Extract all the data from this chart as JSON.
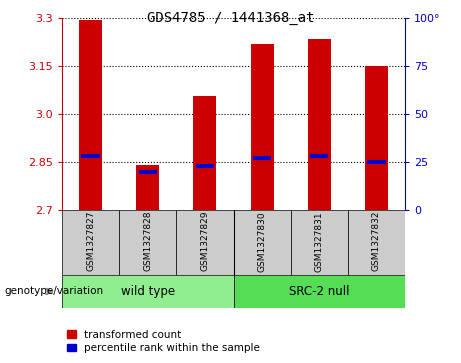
{
  "title": "GDS4785 / 1441368_at",
  "samples": [
    "GSM1327827",
    "GSM1327828",
    "GSM1327829",
    "GSM1327830",
    "GSM1327831",
    "GSM1327832"
  ],
  "transformed_counts": [
    3.295,
    2.84,
    3.055,
    3.22,
    3.235,
    3.15
  ],
  "percentile_ranks": [
    28,
    20,
    23,
    27,
    28,
    25
  ],
  "y_min": 2.7,
  "y_max": 3.3,
  "y_ticks_left": [
    2.7,
    2.85,
    3.0,
    3.15,
    3.3
  ],
  "y_ticks_right": [
    0,
    25,
    50,
    75,
    100
  ],
  "bar_color": "#cc0000",
  "percentile_color": "#0000cc",
  "groups": [
    {
      "label": "wild type",
      "start": 0,
      "end": 3,
      "color": "#90ee90"
    },
    {
      "label": "SRC-2 null",
      "start": 3,
      "end": 6,
      "color": "#55dd55"
    }
  ],
  "genotype_label": "genotype/variation",
  "legend_items": [
    {
      "label": "transformed count",
      "color": "#cc0000"
    },
    {
      "label": "percentile rank within the sample",
      "color": "#0000cc"
    }
  ],
  "sample_box_color": "#cccccc",
  "bar_width": 0.4
}
